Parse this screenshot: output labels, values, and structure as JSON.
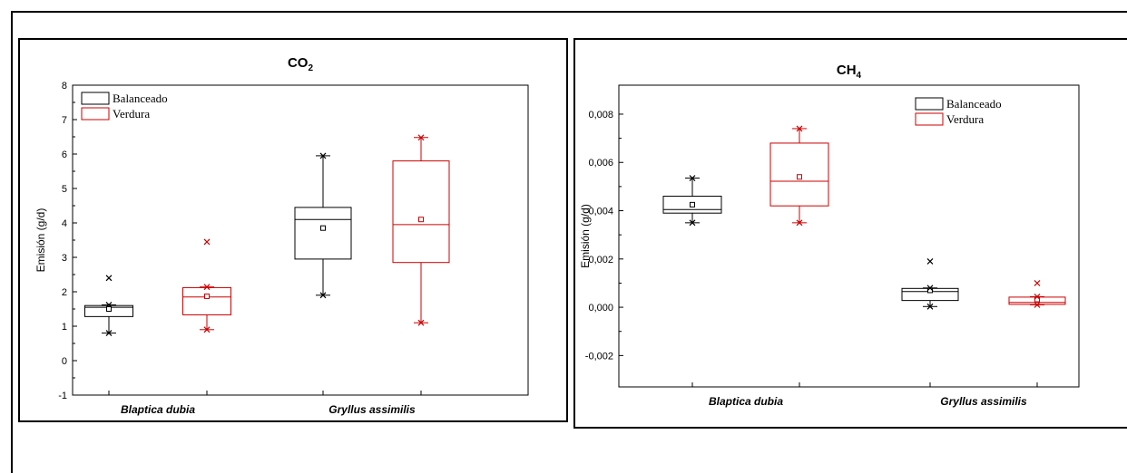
{
  "chart_data": [
    {
      "type": "box",
      "title": "CO",
      "title_subscript": "2",
      "ylabel": "Emisión (g/d)",
      "ylim": [
        -1,
        8
      ],
      "yticks": [
        "-1",
        "0",
        "1",
        "2",
        "3",
        "4",
        "5",
        "6",
        "7",
        "8"
      ],
      "ytick_values": [
        -1,
        0,
        1,
        2,
        3,
        4,
        5,
        6,
        7,
        8
      ],
      "categories": [
        "Blaptica dubia",
        "Gryllus assimilis"
      ],
      "legend": {
        "position": "top-left",
        "entries": [
          "Balanceado",
          "Verdura"
        ]
      },
      "series": [
        {
          "name": "Balanceado",
          "color": "#000000",
          "boxes": [
            {
              "min": 0.8,
              "q1": 1.28,
              "median": 1.55,
              "q3": 1.6,
              "max": 1.62,
              "mean": 1.5,
              "outliers": [
                2.4
              ]
            },
            {
              "min": 1.9,
              "q1": 2.95,
              "median": 4.1,
              "q3": 4.45,
              "max": 5.95,
              "mean": 3.85,
              "outliers": []
            }
          ]
        },
        {
          "name": "Verdura",
          "color": "#cc0000",
          "boxes": [
            {
              "min": 0.9,
              "q1": 1.33,
              "median": 1.85,
              "q3": 2.12,
              "max": 2.14,
              "mean": 1.87,
              "outliers": [
                3.45
              ]
            },
            {
              "min": 1.1,
              "q1": 2.85,
              "median": 3.95,
              "q3": 5.8,
              "max": 6.48,
              "mean": 4.1,
              "outliers": []
            }
          ]
        }
      ]
    },
    {
      "type": "box",
      "title": "CH",
      "title_subscript": "4",
      "ylabel": "Emisión (g/d)",
      "ylim": [
        -0.0033,
        0.0092
      ],
      "yticks": [
        "-0,002",
        "0,000",
        "0,002",
        "0,004",
        "0,006",
        "0,008"
      ],
      "ytick_values": [
        -0.002,
        0,
        0.002,
        0.004,
        0.006,
        0.008
      ],
      "categories": [
        "Blaptica dubia",
        "Gryllus assimilis"
      ],
      "legend": {
        "position": "top-right",
        "entries": [
          "Balanceado",
          "Verdura"
        ]
      },
      "series": [
        {
          "name": "Balanceado",
          "color": "#000000",
          "boxes": [
            {
              "min": 0.0035,
              "q1": 0.0039,
              "median": 0.00405,
              "q3": 0.0046,
              "max": 0.00535,
              "mean": 0.00425,
              "outliers": []
            },
            {
              "min": 3e-05,
              "q1": 0.00028,
              "median": 0.00065,
              "q3": 0.00078,
              "max": 0.0008,
              "mean": 0.0007,
              "outliers": [
                0.0019
              ]
            }
          ]
        },
        {
          "name": "Verdura",
          "color": "#cc0000",
          "boxes": [
            {
              "min": 0.0035,
              "q1": 0.0042,
              "median": 0.00522,
              "q3": 0.0068,
              "max": 0.0074,
              "mean": 0.0054,
              "outliers": []
            },
            {
              "min": 0.0001,
              "q1": 0.00012,
              "median": 0.0002,
              "q3": 0.00042,
              "max": 0.00044,
              "mean": 0.00032,
              "outliers": [
                0.001
              ]
            }
          ]
        }
      ]
    }
  ]
}
